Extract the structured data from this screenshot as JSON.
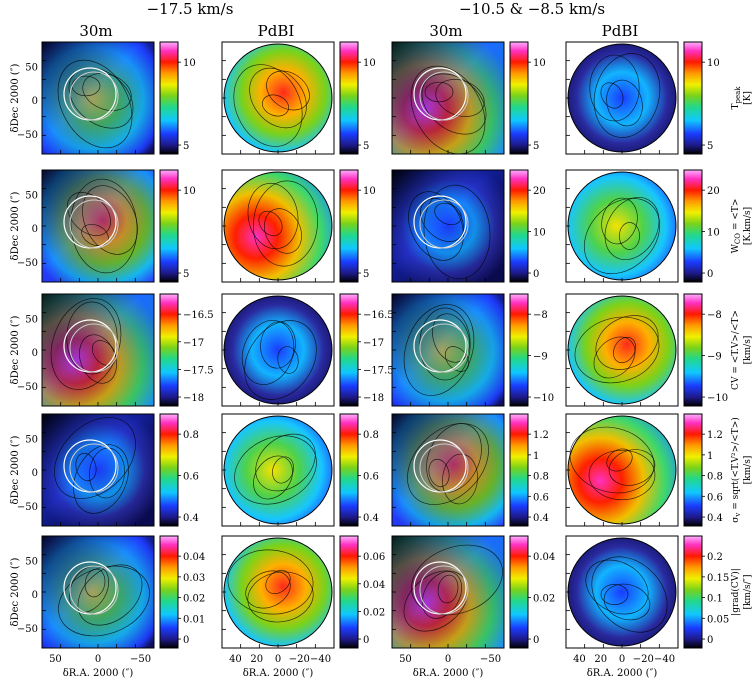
{
  "header": {
    "velocity_left": "−17.5 km/s",
    "velocity_right": "−10.5 & −8.5 km/s"
  },
  "columns": [
    "30m",
    "PdBI",
    "30m",
    "PdBI"
  ],
  "axis": {
    "ylabel": "δDec 2000 (″)",
    "xlabel": "δR.A. 2000 (″)",
    "yticks": [
      "50",
      "0",
      "−50"
    ],
    "xticks_30m": [
      "50",
      "0",
      "−50"
    ],
    "xticks_pdbi": [
      "40",
      "20",
      "0",
      "−20",
      "−40"
    ]
  },
  "rows": [
    {
      "quantity": "T",
      "quantity_sub": "peak",
      "unit": "[K]",
      "colorbars": [
        [
          "10",
          "5"
        ],
        [
          "10",
          "5"
        ],
        [
          "10",
          "5"
        ],
        [
          "10",
          "5"
        ]
      ]
    },
    {
      "quantity": "W",
      "quantity_sub": "CO",
      "quantity_rest": " = <T>",
      "unit": "[K.km/s]",
      "colorbars": [
        [
          "10",
          "5"
        ],
        [
          "10",
          "5"
        ],
        [
          "20",
          "10",
          "0"
        ],
        [
          "20",
          "10",
          "0"
        ]
      ]
    },
    {
      "quantity": "CV = <T.V>/<T>",
      "unit": "[km/s]",
      "colorbars": [
        [
          "−16.5",
          "−17",
          "−17.5",
          "−18"
        ],
        [
          "−16.5",
          "−17",
          "−17.5",
          "−18"
        ],
        [
          "−8",
          "−9",
          "−10"
        ],
        [
          "−8",
          "−9",
          "−10"
        ]
      ]
    },
    {
      "quantity": "σ",
      "quantity_sub": "v",
      "quantity_rest": " = sqrt(<T.V²>/<T>)",
      "unit": "[km/s]",
      "colorbars": [
        [
          "0.8",
          "0.6",
          "0.4"
        ],
        [
          "0.8",
          "0.6",
          "0.4"
        ],
        [
          "1.2",
          "1",
          "0.8",
          "0.6",
          "0.4"
        ],
        [
          "1.2",
          "1",
          "0.8",
          "0.6",
          "0.4"
        ]
      ]
    },
    {
      "quantity": "|grad(CV)|",
      "unit": "[km/s/″]",
      "colorbars": [
        [
          "0.04",
          "0.03",
          "0.02",
          "0.01",
          "0"
        ],
        [
          "0.06",
          "0.04",
          "0.02",
          "0"
        ],
        [
          "0.04",
          "0.02",
          "0"
        ],
        [
          "0.2",
          "0.15",
          "0.1",
          "0.05",
          "0"
        ]
      ]
    }
  ]
}
